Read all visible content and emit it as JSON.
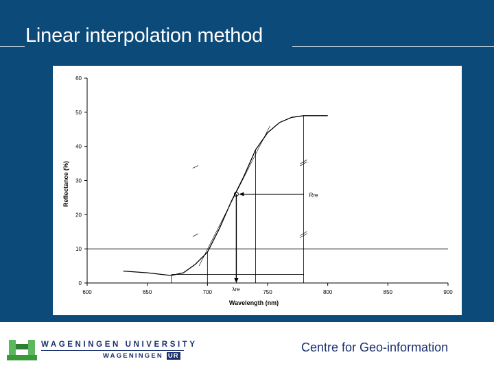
{
  "slide": {
    "title": "Linear interpolation method",
    "footer_right": "Centre for Geo-information",
    "logo_line1": "WAGENINGEN UNIVERSITY",
    "logo_line2a": "WAGENINGEN",
    "logo_line2b": "UR"
  },
  "colors": {
    "background": "#0c4a7a",
    "brand": "#1a2f6e",
    "logo_green": "#4caf50"
  },
  "chart_data": {
    "type": "line",
    "xlabel": "Wavelength (nm)",
    "ylabel": "Reflectance (%)",
    "xlim": [
      600,
      900
    ],
    "ylim": [
      0,
      60
    ],
    "x_ticks": [
      600,
      650,
      700,
      750,
      800,
      850,
      900
    ],
    "y_ticks": [
      0,
      10,
      20,
      30,
      40,
      50,
      60
    ],
    "grid": false,
    "series": [
      {
        "x": [
          630,
          650,
          667,
          670,
          680,
          690,
          700,
          710,
          720,
          730,
          740,
          750,
          760,
          770,
          780,
          790,
          800
        ],
        "y": [
          3.5,
          3.0,
          2.3,
          2.2,
          3.0,
          5.5,
          9,
          16,
          24,
          31,
          39,
          44,
          47,
          48.5,
          49,
          49,
          49
        ]
      }
    ],
    "interpolation_line": {
      "x": [
        693,
        752
      ],
      "y": [
        5,
        46
      ]
    },
    "markers": {
      "lambda_re": 724,
      "R_re": 26,
      "R_re_end": 780
    },
    "reference_lines": {
      "horizontal_y10": 10,
      "vertical_x": [
        670,
        700,
        740,
        780
      ]
    },
    "annotations": {
      "re_label": "Rre",
      "lambda_label": "λre"
    }
  }
}
